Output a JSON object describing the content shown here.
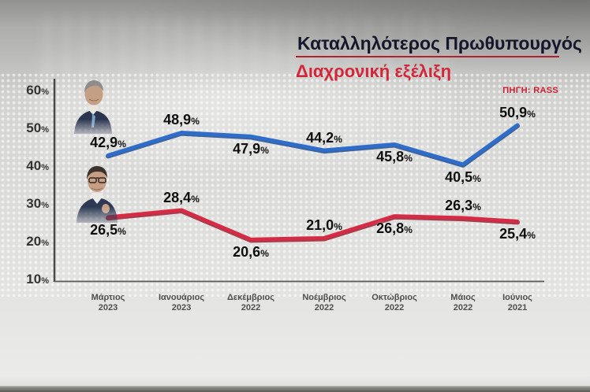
{
  "header": {
    "title": "Καταλληλότερος Πρωθυπουργός",
    "subtitle": "Διαχρονική εξέλιξη",
    "source": "ΠΗΓΗ: RASS"
  },
  "chart_data": {
    "type": "line",
    "title": "Καταλληλότερος Πρωθυπουργός — Διαχρονική εξέλιξη",
    "source": "ΠΗΓΗ: RASS",
    "categories": [
      {
        "month": "Μάρτιος",
        "year": "2023"
      },
      {
        "month": "Ιανουάριος",
        "year": "2023"
      },
      {
        "month": "Δεκέμβριος",
        "year": "2022"
      },
      {
        "month": "Νοέμβριος",
        "year": "2022"
      },
      {
        "month": "Οκτώβριος",
        "year": "2022"
      },
      {
        "month": "Μάιος",
        "year": "2022"
      },
      {
        "month": "Ιούνιος",
        "year": "2021"
      }
    ],
    "series": [
      {
        "id": "blue",
        "values": [
          42.9,
          48.9,
          47.9,
          44.2,
          45.8,
          40.5,
          50.9
        ],
        "labels": [
          "42,9",
          "48,9",
          "47,9",
          "44,2",
          "45,8",
          "40,5",
          "50,9"
        ],
        "label_side": [
          "above",
          "above",
          "below",
          "above",
          "below",
          "below",
          "above"
        ]
      },
      {
        "id": "red",
        "values": [
          26.5,
          28.4,
          20.6,
          21.0,
          26.8,
          26.3,
          25.4
        ],
        "labels": [
          "26,5",
          "28,4",
          "20,6",
          "21,0",
          "26,8",
          "26,3",
          "25,4"
        ],
        "label_side": [
          "below",
          "above",
          "below",
          "above",
          "below",
          "above",
          "below"
        ]
      }
    ],
    "yticks": [
      60,
      50,
      40,
      30,
      20,
      10
    ],
    "ylim": [
      10,
      60
    ],
    "percent_sign": "%",
    "grid": false,
    "legend_position": "photo-cutouts-left-of-first-points"
  },
  "colors": {
    "title_navy": "#15152b",
    "underline_red": "#b5202f",
    "subtitle_red": "#d22739",
    "source_red": "#cf2030",
    "blue_line": "#2f6dca",
    "blue_line_edge": "#1f4d97",
    "red_line": "#d62b45",
    "red_line_edge": "#9e1e31",
    "axis_gray": "#4a4a4a",
    "tick_text": "#333333",
    "xlabel_gray": "#4f4f4f",
    "data_label": "#0f0f0f"
  }
}
